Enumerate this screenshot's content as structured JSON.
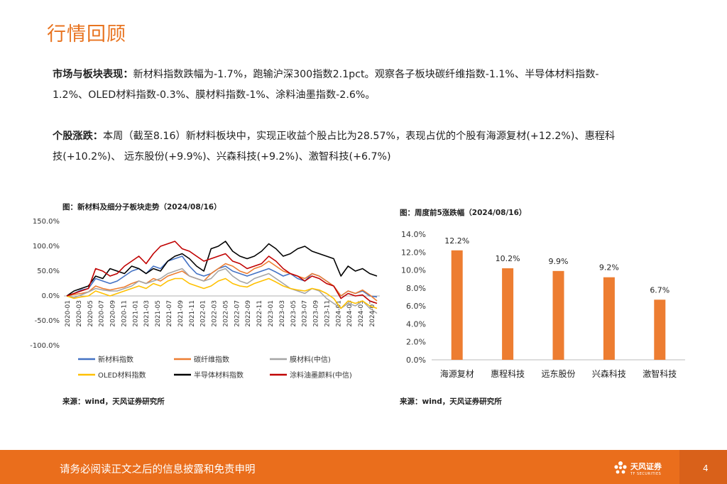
{
  "page": {
    "title": "行情回顾",
    "page_number": "4"
  },
  "para1": {
    "label": "市场与板块表现：",
    "line1": "新材料指数跌幅为-1.7%，跑输沪深300指数2.1pct。观察各子板块碳纤维指数-1.1%、半导体材料指数-",
    "line2": "1.2%、OLED材料指数-0.3%、膜材料指数-1%、涂料油墨指数-2.6%。"
  },
  "para2": {
    "label": "个股涨跌：",
    "line1": "本周（截至8.16）新材料板块中，实现正收益个股占比为28.57%，表现占优的个股有海源复材(+12.2%)、惠程科",
    "line2": "技(+10.2%)、 远东股份(+9.9%)、兴森科技(+9.2%)、激智科技(+6.7%)"
  },
  "chart_left": {
    "caption": "图：新材料及细分子板块走势（2024/08/16）",
    "source": "来源：wind，天风证券研究所"
  },
  "chart_right": {
    "caption": "图：周度前5涨跌幅（2024/08/16）",
    "source": "来源：wind，天风证券研究所"
  },
  "footer": {
    "disclaimer": "请务必阅读正文之后的信息披露和免责申明",
    "logo_text": "天风证券",
    "logo_sub": "TF SECURITIES"
  },
  "chart_data": [
    {
      "type": "line",
      "title": "新材料及细分子板块走势（2024/08/16）",
      "y_tick_labels": [
        "150.0%",
        "100.0%",
        "50.0%",
        "0.0%",
        "-50.0%",
        "-100.0%"
      ],
      "ylim": [
        -100,
        150
      ],
      "x_tick_labels": [
        "2020-01",
        "2020-03",
        "2020-05",
        "2020-07",
        "2020-09",
        "2020-11",
        "2021-01",
        "2021-03",
        "2021-05",
        "2021-07",
        "2021-09",
        "2021-11",
        "2022-01",
        "2022-03",
        "2022-05",
        "2022-07",
        "2022-09",
        "2022-11",
        "2023-01",
        "2023-03",
        "2023-05",
        "2023-07",
        "2023-09",
        "2023-11",
        "2024-01",
        "2024-03",
        "2024-05",
        "2024-07"
      ],
      "series": [
        {
          "name": "新材料指数",
          "color": "#4472c4",
          "values": [
            0,
            5,
            12,
            15,
            35,
            30,
            25,
            30,
            40,
            50,
            55,
            45,
            60,
            55,
            70,
            75,
            80,
            60,
            45,
            40,
            45,
            55,
            60,
            50,
            45,
            40,
            45,
            50,
            55,
            48,
            40,
            45,
            35,
            30,
            45,
            40,
            30,
            20,
            0,
            10,
            5,
            10,
            0,
            -2
          ]
        },
        {
          "name": "碳纤维指数",
          "color": "#ed7d31",
          "values": [
            0,
            3,
            5,
            8,
            20,
            15,
            12,
            15,
            18,
            25,
            30,
            25,
            35,
            30,
            40,
            45,
            50,
            40,
            35,
            30,
            45,
            55,
            65,
            60,
            50,
            45,
            55,
            60,
            70,
            60,
            50,
            45,
            40,
            35,
            45,
            40,
            30,
            20,
            0,
            10,
            5,
            12,
            2,
            -10
          ]
        },
        {
          "name": "膜材料(中信)",
          "color": "#a5a5a5",
          "values": [
            0,
            -3,
            2,
            8,
            15,
            12,
            10,
            10,
            15,
            20,
            30,
            25,
            30,
            35,
            45,
            50,
            55,
            40,
            35,
            30,
            35,
            50,
            55,
            40,
            30,
            25,
            35,
            40,
            45,
            35,
            25,
            15,
            10,
            5,
            15,
            10,
            -5,
            -15,
            -25,
            -15,
            -20,
            -10,
            -25,
            -35
          ]
        },
        {
          "name": "OLED材料指数",
          "color": "#ffc000",
          "values": [
            0,
            -5,
            -2,
            0,
            10,
            5,
            0,
            5,
            10,
            15,
            20,
            15,
            25,
            20,
            30,
            35,
            35,
            25,
            20,
            15,
            20,
            30,
            35,
            25,
            20,
            18,
            25,
            30,
            35,
            28,
            20,
            15,
            12,
            10,
            15,
            12,
            5,
            -5,
            -25,
            -10,
            -15,
            -10,
            -20,
            -25
          ]
        },
        {
          "name": "半导体材料指数",
          "color": "#000000",
          "values": [
            0,
            10,
            15,
            20,
            40,
            35,
            55,
            50,
            45,
            60,
            55,
            45,
            55,
            50,
            70,
            80,
            85,
            75,
            60,
            50,
            95,
            100,
            110,
            90,
            80,
            75,
            80,
            90,
            105,
            95,
            80,
            85,
            95,
            100,
            90,
            85,
            80,
            75,
            40,
            60,
            50,
            55,
            45,
            40
          ]
        },
        {
          "name": "涂料油墨颜料(中信)",
          "color": "#c00000",
          "values": [
            0,
            5,
            10,
            15,
            55,
            50,
            40,
            45,
            60,
            70,
            80,
            65,
            85,
            100,
            105,
            110,
            95,
            90,
            80,
            70,
            75,
            80,
            85,
            70,
            65,
            55,
            60,
            65,
            80,
            70,
            55,
            45,
            40,
            30,
            40,
            35,
            25,
            20,
            -5,
            5,
            0,
            2,
            -10,
            -15
          ]
        }
      ]
    },
    {
      "type": "bar",
      "title": "周度前5涨跌幅（2024/08/16）",
      "categories": [
        "海源复材",
        "惠程科技",
        "远东股份",
        "兴森科技",
        "激智科技"
      ],
      "values": [
        12.2,
        10.2,
        9.9,
        9.2,
        6.7
      ],
      "data_labels": [
        "12.2%",
        "10.2%",
        "9.9%",
        "9.2%",
        "6.7%"
      ],
      "y_tick_labels": [
        "14.0%",
        "12.0%",
        "10.0%",
        "8.0%",
        "6.0%",
        "4.0%",
        "2.0%",
        "0.0%"
      ],
      "ylim": [
        0,
        14
      ],
      "color": "#ed7d31"
    }
  ]
}
